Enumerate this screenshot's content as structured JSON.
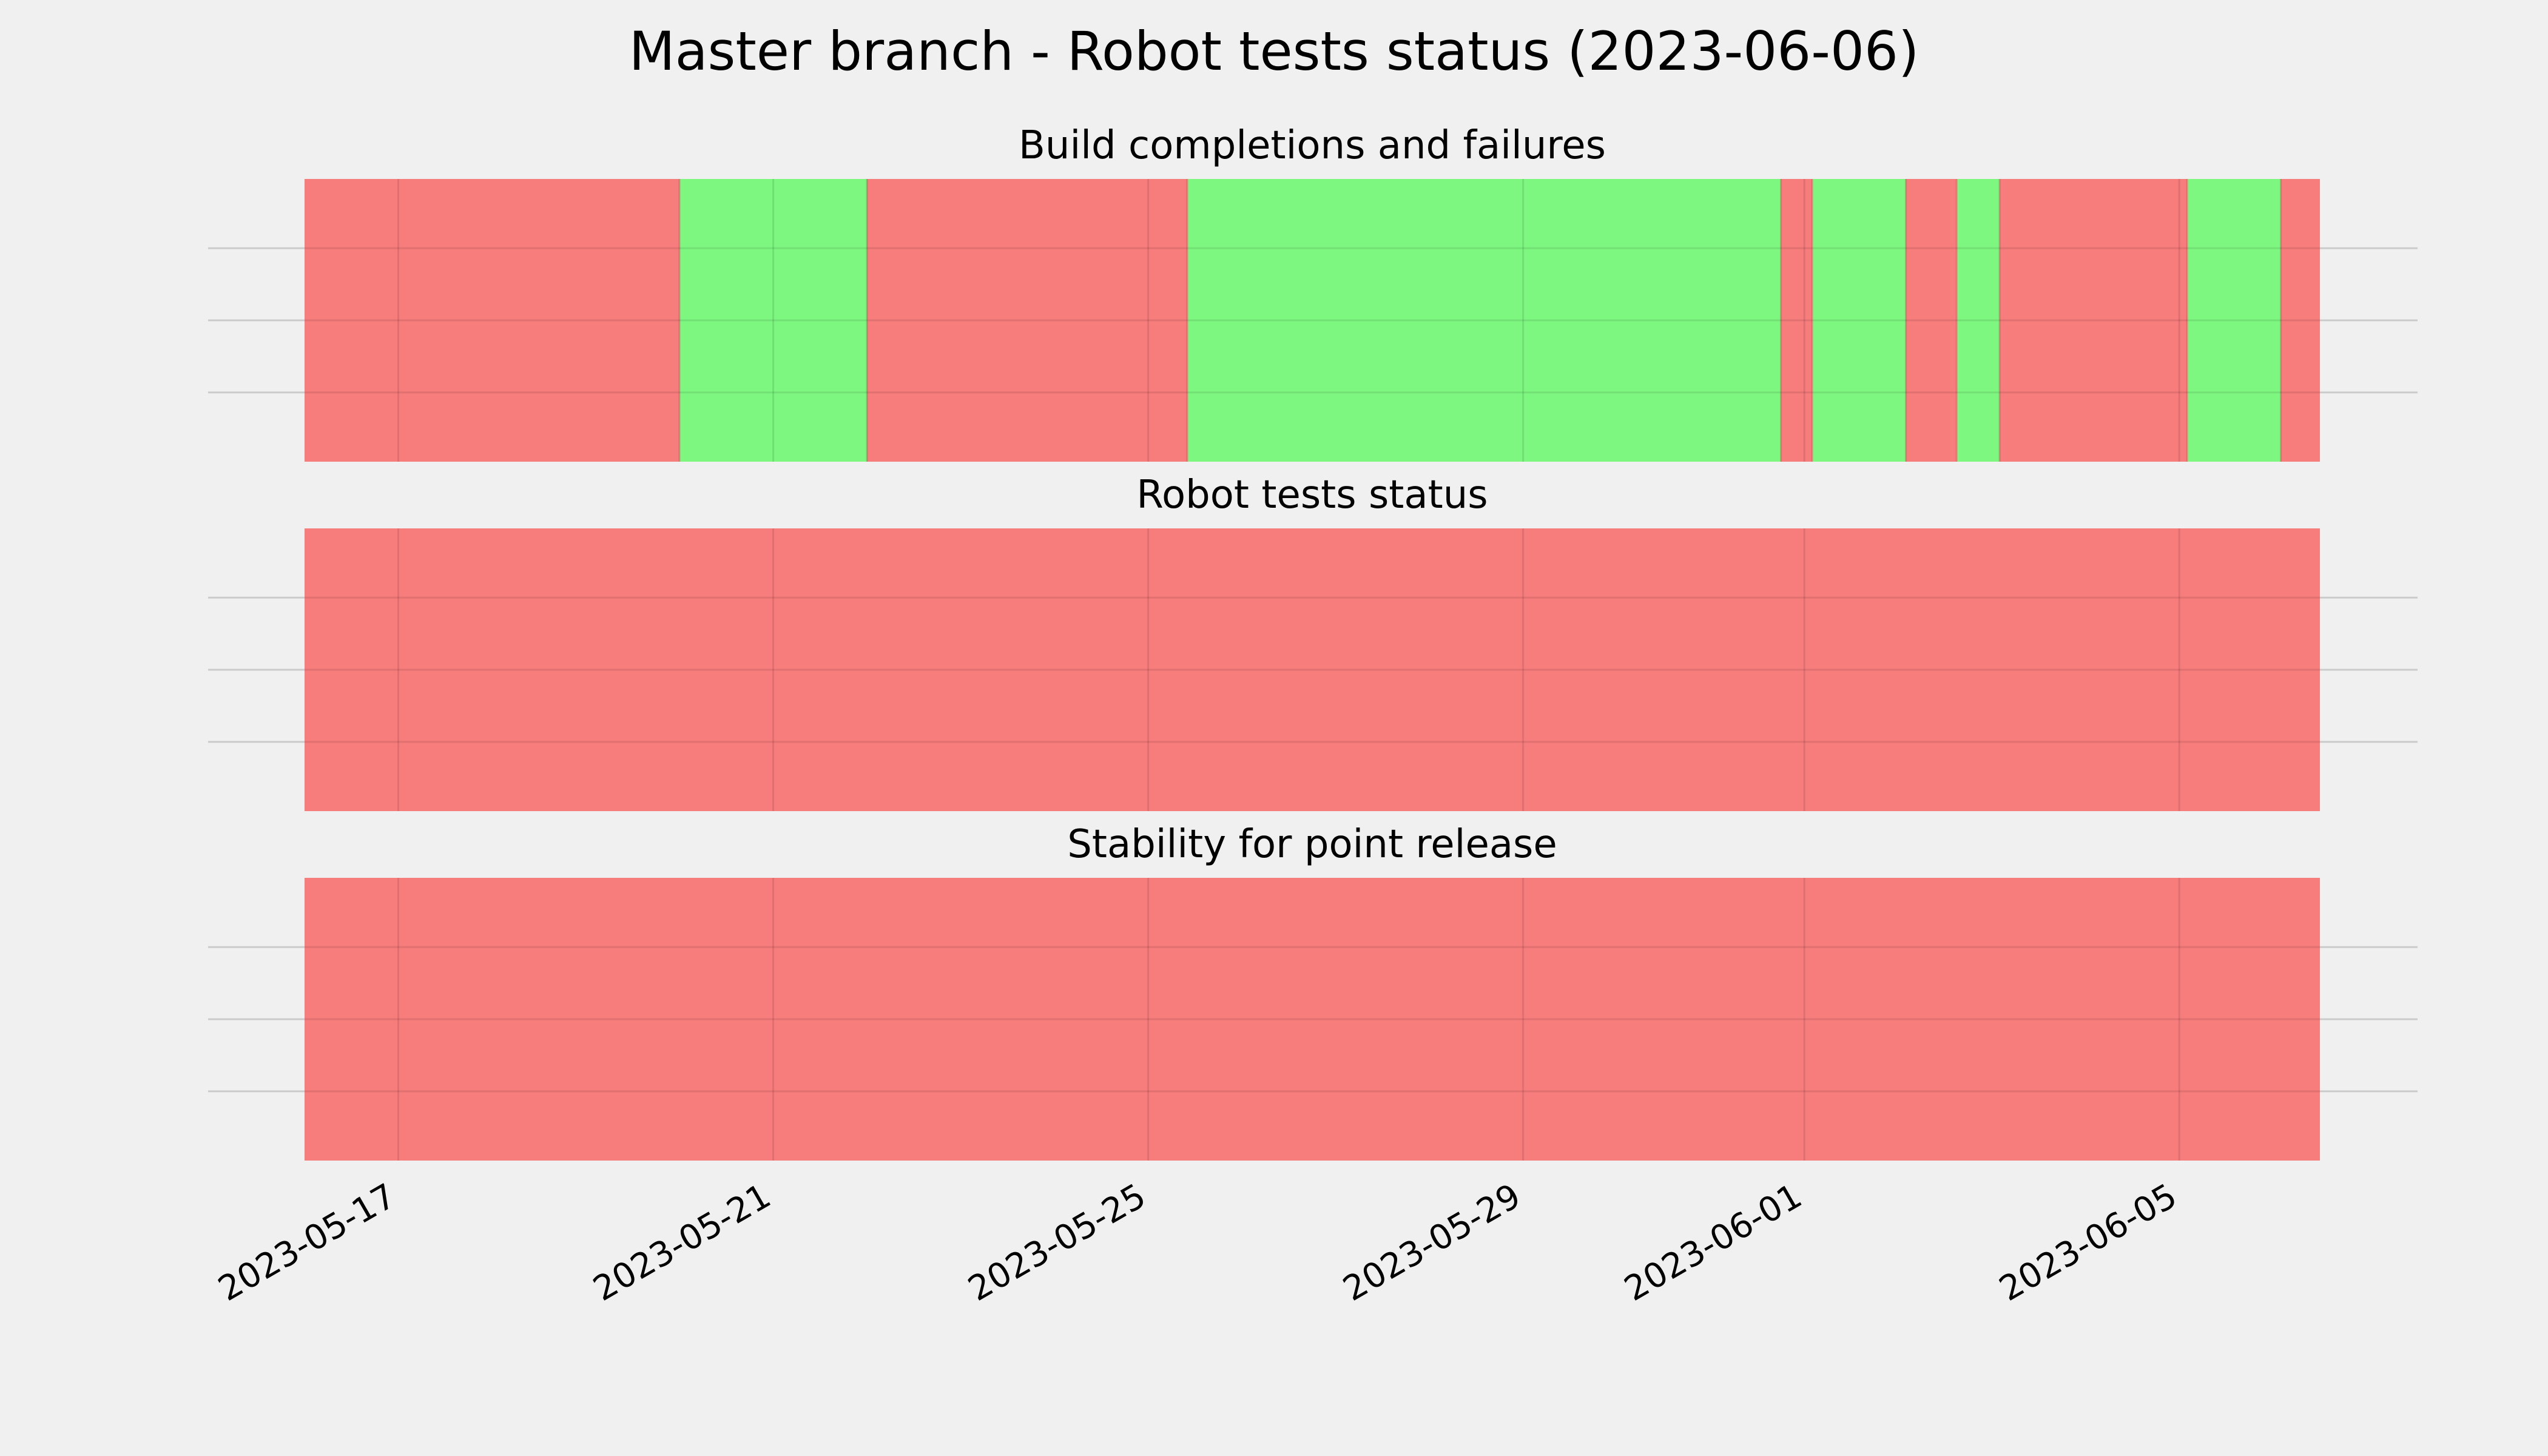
{
  "title": "Master branch - Robot tests status (2023-06-06)",
  "chart_data": {
    "type": "timeline",
    "x_axis": {
      "type": "date",
      "range": [
        "2023-05-16T00:00",
        "2023-06-06T12:00"
      ],
      "ticks": [
        "2023-05-17",
        "2023-05-21",
        "2023-05-25",
        "2023-05-29",
        "2023-06-01",
        "2023-06-05"
      ],
      "tick_label_rotation": 30
    },
    "grid": true,
    "colors": {
      "pass": "#77f77a",
      "fail": "#f77676",
      "background": "#f0f0f0",
      "grid": "#cbcbcb"
    },
    "panels": [
      {
        "title": "Build completions and failures",
        "segments": [
          {
            "start": "2023-05-16T00:00",
            "end": "2023-05-20T00:00",
            "status": "fail"
          },
          {
            "start": "2023-05-20T00:00",
            "end": "2023-05-22T00:00",
            "status": "pass"
          },
          {
            "start": "2023-05-22T00:00",
            "end": "2023-05-25T10:00",
            "status": "fail"
          },
          {
            "start": "2023-05-25T10:00",
            "end": "2023-05-31T18:00",
            "status": "pass"
          },
          {
            "start": "2023-05-31T18:00",
            "end": "2023-06-01T02:00",
            "status": "fail"
          },
          {
            "start": "2023-06-01T02:00",
            "end": "2023-06-02T02:00",
            "status": "pass"
          },
          {
            "start": "2023-06-02T02:00",
            "end": "2023-06-02T15:00",
            "status": "fail"
          },
          {
            "start": "2023-06-02T15:00",
            "end": "2023-06-03T02:00",
            "status": "pass"
          },
          {
            "start": "2023-06-03T02:00",
            "end": "2023-06-05T02:00",
            "status": "fail"
          },
          {
            "start": "2023-06-05T02:00",
            "end": "2023-06-06T02:00",
            "status": "pass"
          },
          {
            "start": "2023-06-06T02:00",
            "end": "2023-06-06T12:00",
            "status": "fail"
          }
        ]
      },
      {
        "title": "Robot tests status",
        "segments": [
          {
            "start": "2023-05-16T00:00",
            "end": "2023-06-06T12:00",
            "status": "fail"
          }
        ]
      },
      {
        "title": "Stability for point release",
        "segments": [
          {
            "start": "2023-05-16T00:00",
            "end": "2023-06-06T12:00",
            "status": "fail"
          }
        ]
      }
    ]
  }
}
